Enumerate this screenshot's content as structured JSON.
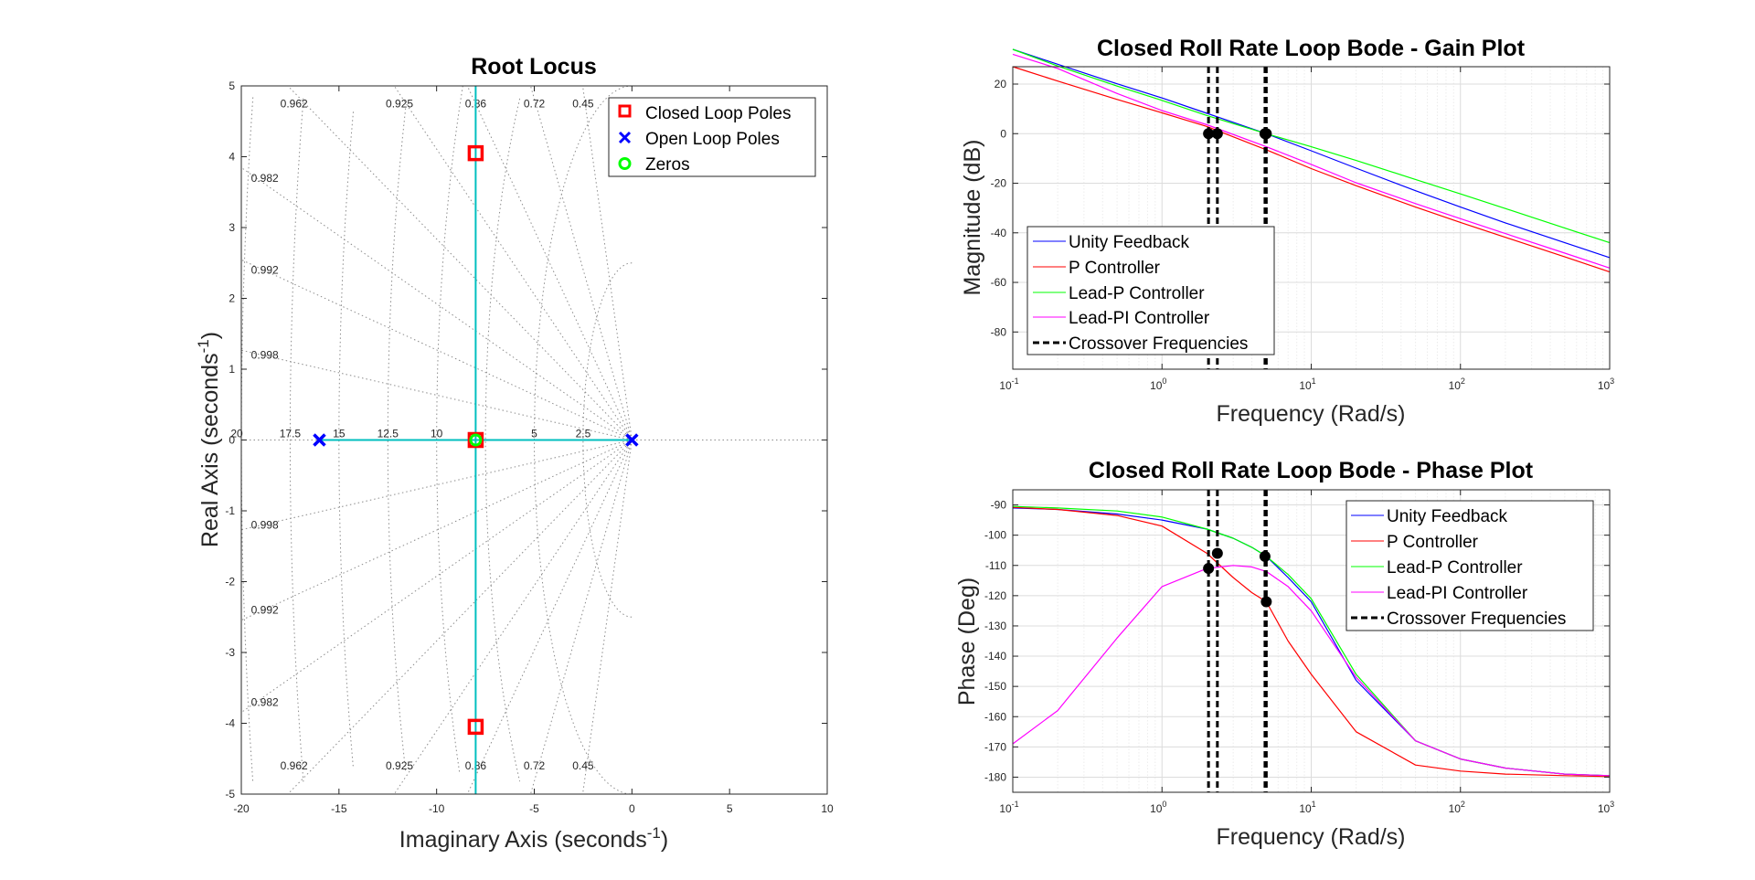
{
  "figure": {
    "colors": {
      "unity": "#0000ff",
      "p": "#ff0000",
      "leadp": "#00ff00",
      "leadpi": "#ff00ff",
      "locus": "#00bfbf",
      "closed_marker": "#ff0000",
      "open_marker": "#0000ff",
      "zero_marker": "#00ff00"
    }
  },
  "chart_data": [
    {
      "id": "root_locus",
      "type": "scatter",
      "title": "Root Locus",
      "xlabel": "Imaginary Axis (seconds",
      "xlabel_sup": "-1",
      "xlabel_tail": ")",
      "ylabel": "Real Axis (seconds",
      "ylabel_sup": "-1",
      "ylabel_tail": ")",
      "xlim": [
        -20,
        10
      ],
      "ylim": [
        -5,
        5
      ],
      "xticks": [
        "-20",
        "-15",
        "-10",
        "-5",
        "0",
        "5",
        "10"
      ],
      "yticks": [
        "5",
        "4",
        "3",
        "2",
        "1",
        "0",
        "-1",
        "-2",
        "-3",
        "-4",
        "-5"
      ],
      "grid": "sgrid",
      "damping_labels": [
        "0.962",
        "0.925",
        "0.86",
        "0.72",
        "0.45"
      ],
      "damping_side_labels": [
        "0.982",
        "0.992",
        "0.998"
      ],
      "wn_labels": [
        "20",
        "17.5",
        "15",
        "12.5",
        "10",
        "5",
        "2.5"
      ],
      "locus_branches": [
        {
          "points": [
            [
              -16,
              0
            ],
            [
              0,
              0
            ]
          ]
        },
        {
          "points": [
            [
              -8,
              -5
            ],
            [
              -8,
              5
            ]
          ]
        }
      ],
      "series": [
        {
          "name": "Closed Loop Poles",
          "marker": "square",
          "points": [
            [
              -8,
              4.05
            ],
            [
              -8,
              0
            ],
            [
              -8,
              -4.05
            ]
          ]
        },
        {
          "name": "Open Loop Poles",
          "marker": "x",
          "points": [
            [
              -16,
              0
            ],
            [
              0,
              0
            ]
          ]
        },
        {
          "name": "Zeros",
          "marker": "circle",
          "points": [
            [
              -8,
              0
            ]
          ]
        }
      ],
      "legend": "top-right"
    },
    {
      "id": "bode_gain",
      "type": "line",
      "title": "Closed Roll Rate Loop Bode - Gain Plot",
      "xlabel": "Frequency (Rad/s)",
      "ylabel": "Magnitude (dB)",
      "xscale": "log",
      "xlim": [
        0.1,
        1000
      ],
      "ylim": [
        -95,
        27
      ],
      "yticks": [
        "20",
        "0",
        "-20",
        "-40",
        "-60",
        "-80"
      ],
      "xtick_exponents": [
        "-1",
        "0",
        "1",
        "2",
        "3"
      ],
      "grid": true,
      "x": [
        0.1,
        0.2,
        0.5,
        1,
        2,
        5,
        10,
        20,
        50,
        100,
        200,
        500,
        1000
      ],
      "series": [
        {
          "name": "Unity Feedback",
          "values": [
            34,
            28,
            20.1,
            14.4,
            8.2,
            0,
            -6.9,
            -13.9,
            -23,
            -29.6,
            -36,
            -44,
            -50
          ]
        },
        {
          "name": "P Controller",
          "values": [
            27,
            21.2,
            13.8,
            8.4,
            2.9,
            -6.5,
            -14.1,
            -21,
            -29.6,
            -35.8,
            -41.8,
            -49.7,
            -55.8
          ]
        },
        {
          "name": "Lead-P Controller",
          "values": [
            34,
            27.3,
            19.2,
            13.4,
            7.3,
            0,
            -5.3,
            -10.8,
            -18.5,
            -24.3,
            -30.2,
            -38.1,
            -44
          ]
        },
        {
          "name": "Lead-PI Controller",
          "values": [
            32,
            26.3,
            16.2,
            9.3,
            3.6,
            -5.3,
            -12.4,
            -19.8,
            -28.2,
            -34.3,
            -40.3,
            -48.2,
            -54.2
          ]
        }
      ],
      "crossovers": [
        {
          "x": 2.05,
          "y": 0
        },
        {
          "x": 2.35,
          "y": 0
        },
        {
          "x": 4.9,
          "y": 0
        },
        {
          "x": 5.0,
          "y": 0
        }
      ],
      "legend": "bottom-left",
      "crossover_label": "Crossover Frequencies"
    },
    {
      "id": "bode_phase",
      "type": "line",
      "title": "Closed Roll Rate Loop Bode - Phase Plot",
      "xlabel": "Frequency (Rad/s)",
      "ylabel": "Phase (Deg)",
      "xscale": "log",
      "xlim": [
        0.1,
        1000
      ],
      "ylim": [
        -185,
        -85
      ],
      "yticks": [
        "-90",
        "-100",
        "-110",
        "-120",
        "-130",
        "-140",
        "-150",
        "-160",
        "-170",
        "-180"
      ],
      "xtick_exponents": [
        "-1",
        "0",
        "1",
        "2",
        "3"
      ],
      "grid": true,
      "x": [
        0.1,
        0.2,
        0.5,
        1,
        2,
        3,
        4,
        5,
        7,
        10,
        20,
        50,
        100,
        200,
        500,
        1000
      ],
      "series": [
        {
          "name": "Unity Feedback",
          "values": [
            -91,
            -91.5,
            -93,
            -95,
            -98,
            -101,
            -104,
            -107,
            -114,
            -122,
            -148,
            -168,
            -174,
            -177,
            -179,
            -179.5
          ]
        },
        {
          "name": "P Controller",
          "values": [
            -90.8,
            -91.5,
            -93.5,
            -97,
            -106,
            -114,
            -119,
            -122,
            -135,
            -146,
            -165,
            -176,
            -178,
            -179,
            -179.5,
            -179.8
          ]
        },
        {
          "name": "Lead-P Controller",
          "values": [
            -90.5,
            -91,
            -92,
            -94,
            -98,
            -101,
            -104,
            -107,
            -113,
            -121,
            -146,
            -168,
            -174,
            -177,
            -179,
            -179.5
          ]
        },
        {
          "name": "Lead-PI Controller",
          "values": [
            -169,
            -158,
            -134,
            -117,
            -111,
            -110,
            -110.5,
            -112,
            -117,
            -125,
            -147,
            -168,
            -174,
            -177,
            -179,
            -179.5
          ]
        }
      ],
      "crossovers": [
        {
          "x": 2.05,
          "y": -111
        },
        {
          "x": 2.35,
          "y": -106
        },
        {
          "x": 4.9,
          "y": -107
        },
        {
          "x": 5.0,
          "y": -122
        }
      ],
      "legend": "top-right",
      "crossover_label": "Crossover Frequencies"
    }
  ]
}
